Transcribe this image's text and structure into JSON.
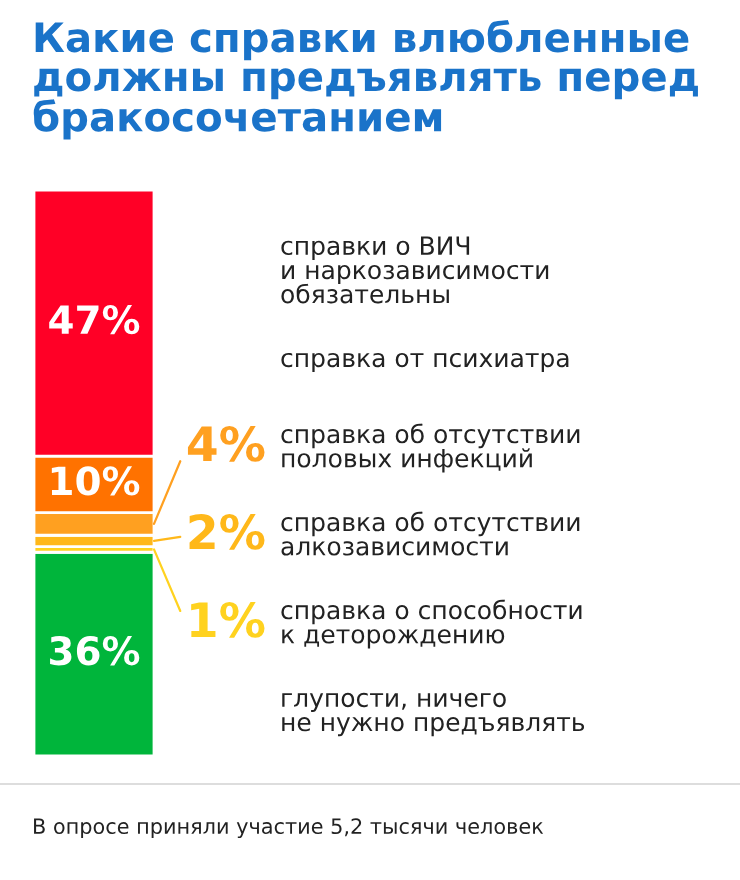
{
  "chart_data": {
    "type": "bar",
    "stacked": true,
    "title": "Какие справки влюбленные\nдолжны предъявлять перед\nбракосочетанием",
    "categories": [
      null
    ],
    "series": [
      {
        "name": "глупости, ничего\nне нужно предъявлять",
        "color": "#00b53b",
        "values": [
          36
        ],
        "value_labels": [
          "36%"
        ]
      },
      {
        "name": "справка о способности\nк деторождению",
        "color": "#ffd21f",
        "values": [
          1
        ],
        "value_labels": [
          "1%"
        ]
      },
      {
        "name": "справка об отсутствии\nалкозависимости",
        "color": "#ffb81a",
        "values": [
          2
        ],
        "value_labels": [
          "2%"
        ]
      },
      {
        "name": "справка об отсутствии\nполовых инфекций",
        "color": "#ffa020",
        "values": [
          4
        ],
        "value_labels": [
          "4%"
        ]
      },
      {
        "name": "справка от психиатра",
        "color": "#ff7200",
        "values": [
          10
        ],
        "value_labels": [
          "10%"
        ]
      },
      {
        "name": "справки о ВИЧ\nи наркозависимости\nобязательны",
        "color": "#ff0026",
        "values": [
          47
        ],
        "value_labels": [
          "47%"
        ]
      }
    ],
    "annotations": [
      "В опросе приняли участие 5,2 тысячи человек"
    ]
  }
}
